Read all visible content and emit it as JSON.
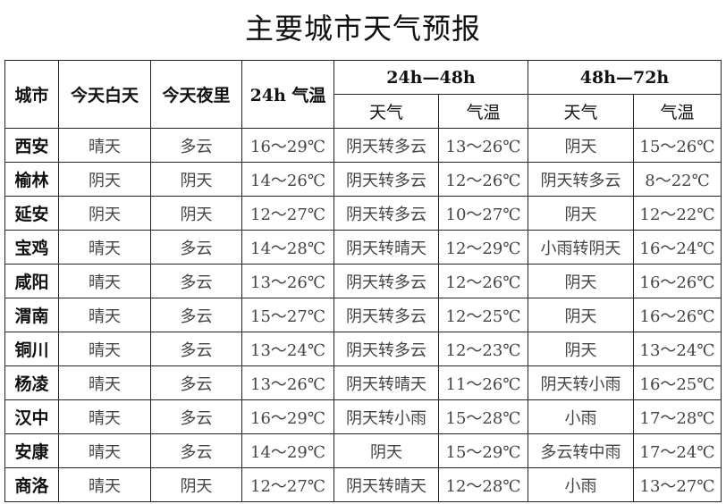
{
  "title": "主要城市天气预报",
  "table": {
    "headers": {
      "city": "城市",
      "today_day": "今天白天",
      "today_night": "今天夜里",
      "temp_24h": "24h 气温",
      "group_24_48": "24h—48h",
      "group_48_72": "48h—72h",
      "weather": "天气",
      "temp": "气温"
    },
    "rows": [
      [
        "西安",
        "晴天",
        "多云",
        "16～29℃",
        "阴天转多云",
        "13～26℃",
        "阴天",
        "15～26℃"
      ],
      [
        "榆林",
        "阴天",
        "阴天",
        "14～26℃",
        "阴天转多云",
        "12～26℃",
        "阴天转多云",
        "8～22℃"
      ],
      [
        "延安",
        "阴天",
        "阴天",
        "12～27℃",
        "阴天转多云",
        "10～27℃",
        "阴天",
        "12～22℃"
      ],
      [
        "宝鸡",
        "晴天",
        "多云",
        "14～28℃",
        "阴天转晴天",
        "12～29℃",
        "小雨转阴天",
        "16～24℃"
      ],
      [
        "咸阳",
        "晴天",
        "多云",
        "13～26℃",
        "阴天转多云",
        "12～26℃",
        "阴天",
        "16～26℃"
      ],
      [
        "渭南",
        "晴天",
        "多云",
        "15～27℃",
        "阴天转多云",
        "12～25℃",
        "阴天",
        "16～26℃"
      ],
      [
        "铜川",
        "晴天",
        "多云",
        "13～24℃",
        "阴天转多云",
        "12～23℃",
        "阴天",
        "13～24℃"
      ],
      [
        "杨凌",
        "晴天",
        "多云",
        "13～26℃",
        "阴天转晴天",
        "11～26℃",
        "阴天转小雨",
        "16～25℃"
      ],
      [
        "汉中",
        "晴天",
        "多云",
        "16～29℃",
        "阴天转小雨",
        "15～28℃",
        "小雨",
        "17～28℃"
      ],
      [
        "安康",
        "晴天",
        "多云",
        "14～29℃",
        "阴天",
        "15～29℃",
        "多云转中雨",
        "17～24℃"
      ],
      [
        "商洛",
        "晴天",
        "阴天",
        "12～27℃",
        "阴天转晴天",
        "12～28℃",
        "小雨",
        "13～27℃"
      ]
    ]
  }
}
